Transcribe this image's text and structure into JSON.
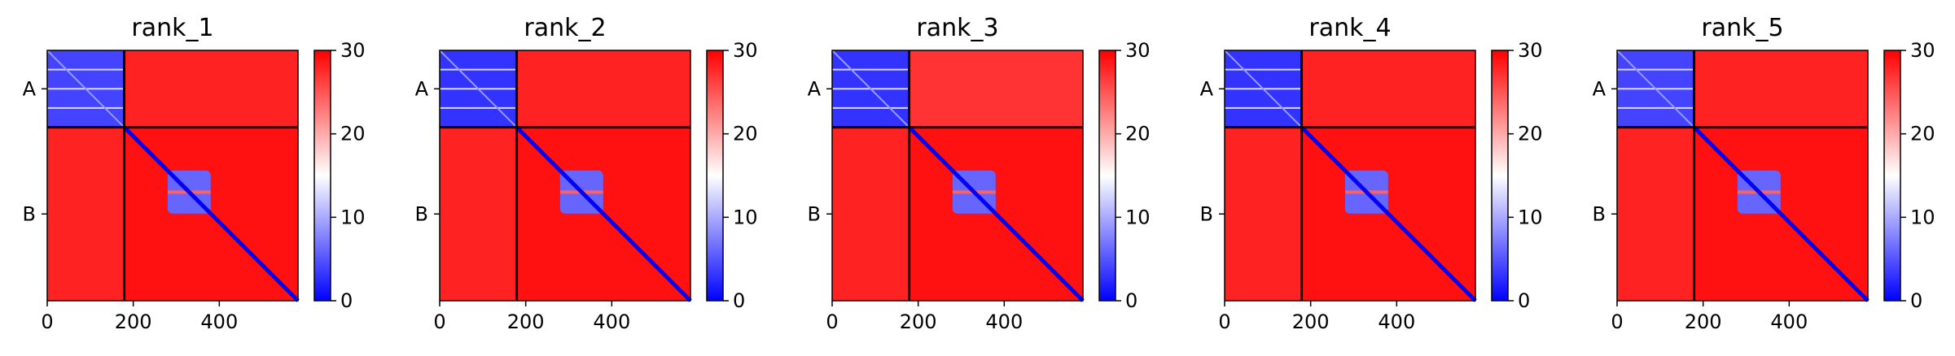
{
  "chart_data": [
    {
      "type": "heatmap",
      "title": "rank_1",
      "xticks": [
        0,
        200,
        400
      ],
      "xlim": [
        0,
        583
      ],
      "yticks": [
        "A",
        "B"
      ],
      "chain_boundary": 179,
      "colorbar": {
        "min": 0,
        "max": 30,
        "ticks": [
          0,
          10,
          20,
          30
        ],
        "colormap": "bwr"
      },
      "blocks": [
        {
          "chains": "A-A",
          "mean": 4
        },
        {
          "chains": "A-B",
          "mean": 28
        },
        {
          "chains": "B-A",
          "mean": 28
        },
        {
          "chains": "B-B",
          "mean": 29,
          "low_region": [
            280,
            380
          ],
          "diagonal": 0
        }
      ]
    },
    {
      "type": "heatmap",
      "title": "rank_2",
      "xticks": [
        0,
        200,
        400
      ],
      "xlim": [
        0,
        583
      ],
      "yticks": [
        "A",
        "B"
      ],
      "chain_boundary": 179,
      "colorbar": {
        "min": 0,
        "max": 30,
        "ticks": [
          0,
          10,
          20,
          30
        ],
        "colormap": "bwr"
      },
      "blocks": [
        {
          "chains": "A-A",
          "mean": 3
        },
        {
          "chains": "A-B",
          "mean": 28
        },
        {
          "chains": "B-A",
          "mean": 28
        },
        {
          "chains": "B-B",
          "mean": 29,
          "low_region": [
            280,
            380
          ],
          "diagonal": 0
        }
      ]
    },
    {
      "type": "heatmap",
      "title": "rank_3",
      "xticks": [
        0,
        200,
        400
      ],
      "xlim": [
        0,
        583
      ],
      "yticks": [
        "A",
        "B"
      ],
      "chain_boundary": 179,
      "colorbar": {
        "min": 0,
        "max": 30,
        "ticks": [
          0,
          10,
          20,
          30
        ],
        "colormap": "bwr"
      },
      "blocks": [
        {
          "chains": "A-A",
          "mean": 3
        },
        {
          "chains": "A-B",
          "mean": 27
        },
        {
          "chains": "B-A",
          "mean": 28
        },
        {
          "chains": "B-B",
          "mean": 29,
          "low_region": [
            280,
            380
          ],
          "diagonal": 0
        }
      ]
    },
    {
      "type": "heatmap",
      "title": "rank_4",
      "xticks": [
        0,
        200,
        400
      ],
      "xlim": [
        0,
        583
      ],
      "yticks": [
        "A",
        "B"
      ],
      "chain_boundary": 179,
      "colorbar": {
        "min": 0,
        "max": 30,
        "ticks": [
          0,
          10,
          20,
          30
        ],
        "colormap": "bwr"
      },
      "blocks": [
        {
          "chains": "A-A",
          "mean": 3
        },
        {
          "chains": "A-B",
          "mean": 28
        },
        {
          "chains": "B-A",
          "mean": 28
        },
        {
          "chains": "B-B",
          "mean": 29,
          "low_region": [
            280,
            380
          ],
          "diagonal": 0
        }
      ]
    },
    {
      "type": "heatmap",
      "title": "rank_5",
      "xticks": [
        0,
        200,
        400
      ],
      "xlim": [
        0,
        583
      ],
      "yticks": [
        "A",
        "B"
      ],
      "chain_boundary": 179,
      "colorbar": {
        "min": 0,
        "max": 30,
        "ticks": [
          0,
          10,
          20,
          30
        ],
        "colormap": "bwr"
      },
      "blocks": [
        {
          "chains": "A-A",
          "mean": 4
        },
        {
          "chains": "A-B",
          "mean": 28
        },
        {
          "chains": "B-A",
          "mean": 28
        },
        {
          "chains": "B-B",
          "mean": 29,
          "low_region": [
            280,
            380
          ],
          "diagonal": 0
        }
      ]
    }
  ]
}
